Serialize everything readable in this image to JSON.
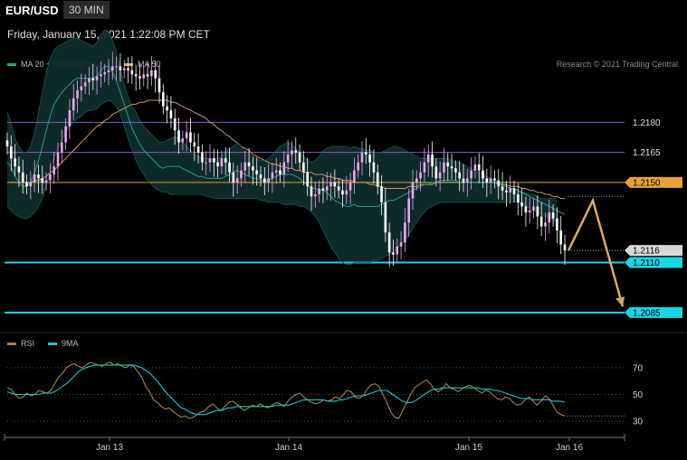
{
  "header": {
    "symbol": "EUR/USD",
    "interval": "30 MIN",
    "timestamp": "Friday, January 15, 2021 1:22:08 PM CET"
  },
  "legend_main": [
    {
      "label": "MA 20 + Bollinger Bands",
      "color": "#1f9e92"
    },
    {
      "label": "MA 50",
      "color": "#d4a86a"
    }
  ],
  "credit": "Research © 2021 Trading Central",
  "legend_rsi": [
    {
      "label": "RSI",
      "color": "#a3834e"
    },
    {
      "label": "9MA",
      "color": "#19c5cf"
    }
  ],
  "chart_data": [
    {
      "type": "candlestick",
      "x_ticks": [
        "Jan 13",
        "Jan 14",
        "Jan 15",
        "Jan 16"
      ],
      "ylim": [
        1.2075,
        1.2205
      ],
      "levels": [
        {
          "value": 1.218,
          "label": "1.2180",
          "style": "line",
          "color": "#8a5cc8"
        },
        {
          "value": 1.2165,
          "label": "1.2165",
          "style": "line",
          "color": "#8a5cc8"
        },
        {
          "value": 1.215,
          "label": "1.2150",
          "style": "line",
          "color": "#e8a33a",
          "badge": true
        },
        {
          "value": 1.2116,
          "label": "1.2116",
          "style": "current",
          "color": "#d0d0d0",
          "badge": true
        },
        {
          "value": 1.211,
          "label": "1.2110",
          "style": "thick",
          "color": "#19d6e6",
          "badge": true
        },
        {
          "value": 1.2085,
          "label": "1.2085",
          "style": "thick",
          "color": "#19d6e6",
          "badge": true
        }
      ],
      "forecast_path": [
        [
          0,
          1.2116
        ],
        [
          1,
          1.2141
        ],
        [
          2,
          1.2088
        ]
      ],
      "candle_colors": {
        "up": "#e8a8ee",
        "down": "#ffffff"
      },
      "close": [
        1.2168,
        1.2162,
        1.2158,
        1.2155,
        1.215,
        1.2148,
        1.215,
        1.2154,
        1.2152,
        1.215,
        1.2151,
        1.2154,
        1.2158,
        1.2165,
        1.217,
        1.2178,
        1.2186,
        1.2192,
        1.2196,
        1.2198,
        1.22,
        1.2202,
        1.2201,
        1.2203,
        1.2204,
        1.2205,
        1.2206,
        1.2208,
        1.2208,
        1.2206,
        1.2207,
        1.2206,
        1.2204,
        1.2203,
        1.2202,
        1.2204,
        1.2203,
        1.2206,
        1.2202,
        1.2195,
        1.2188,
        1.2186,
        1.2182,
        1.2176,
        1.217,
        1.2172,
        1.2175,
        1.217,
        1.2168,
        1.2165,
        1.216,
        1.216,
        1.2162,
        1.216,
        1.2158,
        1.2162,
        1.216,
        1.2155,
        1.215,
        1.2152,
        1.2156,
        1.216,
        1.2158,
        1.2156,
        1.2154,
        1.2152,
        1.215,
        1.2152,
        1.2155,
        1.2156,
        1.2154,
        1.216,
        1.2164,
        1.2166,
        1.2165,
        1.216,
        1.2155,
        1.2148,
        1.2143,
        1.2144,
        1.2147,
        1.2146,
        1.2148,
        1.215,
        1.2148,
        1.2146,
        1.2144,
        1.2146,
        1.215,
        1.2156,
        1.216,
        1.2165,
        1.2164,
        1.216,
        1.2155,
        1.2148,
        1.214,
        1.2125,
        1.2115,
        1.2114,
        1.2118,
        1.212,
        1.213,
        1.2142,
        1.215,
        1.2152,
        1.2155,
        1.216,
        1.2164,
        1.2158,
        1.2152,
        1.2155,
        1.216,
        1.2158,
        1.2157,
        1.2155,
        1.2152,
        1.215,
        1.2152,
        1.2156,
        1.2159,
        1.2156,
        1.2152,
        1.215,
        1.2152,
        1.2151,
        1.2148,
        1.2146,
        1.2145,
        1.2147,
        1.2144,
        1.214,
        1.2138,
        1.2135,
        1.2136,
        1.2138,
        1.2133,
        1.2128,
        1.213,
        1.2135,
        1.2132,
        1.2126,
        1.2119,
        1.2116
      ],
      "bb_upper": [
        1.2185,
        1.218,
        1.2172,
        1.2168,
        1.2165,
        1.2165,
        1.2168,
        1.2175,
        1.2185,
        1.2195,
        1.2205,
        1.2212,
        1.2216,
        1.2218,
        1.2219,
        1.222,
        1.2221,
        1.2222,
        1.2222,
        1.2221,
        1.222,
        1.2219,
        1.2218,
        1.222,
        1.2224,
        1.2226,
        1.2225,
        1.2221,
        1.2215,
        1.2207,
        1.2199,
        1.2193,
        1.2188,
        1.2185,
        1.2181,
        1.2178,
        1.2176,
        1.2174,
        1.2172,
        1.217,
        1.217,
        1.2171,
        1.2172,
        1.2173,
        1.2172,
        1.217,
        1.2168,
        1.2166,
        1.2164,
        1.2163,
        1.2162,
        1.2162,
        1.2162,
        1.2162,
        1.2162,
        1.2163,
        1.2165,
        1.2167,
        1.2168,
        1.217,
        1.2168,
        1.2166,
        1.2164,
        1.2163,
        1.2162,
        1.2161,
        1.2161,
        1.2162,
        1.2164,
        1.2166,
        1.2168,
        1.2169,
        1.217,
        1.2169,
        1.2167,
        1.2165,
        1.2163,
        1.2161,
        1.216,
        1.2161,
        1.2163,
        1.2166,
        1.2167,
        1.2168,
        1.2168,
        1.2168,
        1.2168,
        1.2168,
        1.2167,
        1.2168,
        1.2167,
        1.2167,
        1.2166,
        1.2166,
        1.2165,
        1.2165,
        1.2165,
        1.2166,
        1.2167,
        1.2168,
        1.2168,
        1.2167,
        1.2166,
        1.2165,
        1.2164,
        1.2163,
        1.2162,
        1.2162,
        1.2162,
        1.2162,
        1.2162,
        1.2162,
        1.2162,
        1.2162,
        1.2161,
        1.216,
        1.216,
        1.2159,
        1.2158,
        1.2157,
        1.2156,
        1.2155,
        1.2154,
        1.2153,
        1.2152,
        1.2151,
        1.215,
        1.2149,
        1.2148,
        1.2147,
        1.2146,
        1.2146,
        1.2145,
        1.2145,
        1.2144,
        1.2144,
        1.2143,
        1.2142,
        1.2142,
        1.2142,
        1.2142,
        1.2142
      ],
      "bb_lower": [
        1.2138,
        1.2136,
        1.2134,
        1.2133,
        1.2132,
        1.2132,
        1.2133,
        1.2135,
        1.2138,
        1.2142,
        1.2148,
        1.2155,
        1.2162,
        1.2167,
        1.2171,
        1.2175,
        1.2178,
        1.218,
        1.2182,
        1.2183,
        1.2185,
        1.2186,
        1.2186,
        1.2187,
        1.2189,
        1.219,
        1.2191,
        1.219,
        1.2188,
        1.2184,
        1.2178,
        1.2172,
        1.2166,
        1.2161,
        1.2157,
        1.2154,
        1.2151,
        1.2149,
        1.2147,
        1.2146,
        1.2145,
        1.2145,
        1.2144,
        1.2144,
        1.2144,
        1.2144,
        1.2144,
        1.2144,
        1.2144,
        1.2144,
        1.2144,
        1.2143,
        1.2143,
        1.2142,
        1.2142,
        1.2142,
        1.2142,
        1.2142,
        1.2142,
        1.2142,
        1.2142,
        1.2142,
        1.2142,
        1.2142,
        1.2142,
        1.2141,
        1.2141,
        1.214,
        1.214,
        1.214,
        1.214,
        1.2139,
        1.2139,
        1.2139,
        1.2139,
        1.2138,
        1.2138,
        1.2137,
        1.2135,
        1.2133,
        1.213,
        1.2126,
        1.2122,
        1.2118,
        1.2115,
        1.2112,
        1.211,
        1.2109,
        1.2109,
        1.211,
        1.211,
        1.211,
        1.211,
        1.211,
        1.2111,
        1.2111,
        1.2112,
        1.2113,
        1.2114,
        1.2115,
        1.2117,
        1.2119,
        1.2121,
        1.2124,
        1.2127,
        1.213,
        1.2133,
        1.2135,
        1.2137,
        1.2138,
        1.2139,
        1.214,
        1.214,
        1.214,
        1.214,
        1.214,
        1.214,
        1.214,
        1.214,
        1.214,
        1.214,
        1.214,
        1.214,
        1.214,
        1.214,
        1.214,
        1.214,
        1.214,
        1.214,
        1.214,
        1.214,
        1.214,
        1.2139,
        1.2138,
        1.2137,
        1.2136,
        1.2135,
        1.2134,
        1.2133,
        1.2132,
        1.2131,
        1.213
      ],
      "ma20": [
        1.216,
        1.2158,
        1.2153,
        1.215,
        1.2148,
        1.2148,
        1.215,
        1.2155,
        1.2161,
        1.2168,
        1.2176,
        1.2183,
        1.2189,
        1.2192,
        1.2195,
        1.2197,
        1.2199,
        1.2201,
        1.2202,
        1.2202,
        1.2202,
        1.2202,
        1.2202,
        1.2203,
        1.2206,
        1.2208,
        1.2208,
        1.2205,
        1.2201,
        1.2195,
        1.2189,
        1.2183,
        1.2177,
        1.2173,
        1.2169,
        1.2166,
        1.2164,
        1.2162,
        1.216,
        1.2158,
        1.2157,
        1.2158,
        1.2158,
        1.2158,
        1.2158,
        1.2157,
        1.2156,
        1.2155,
        1.2154,
        1.2153,
        1.2153,
        1.2152,
        1.2152,
        1.2152,
        1.2152,
        1.2152,
        1.2153,
        1.2154,
        1.2155,
        1.2156,
        1.2155,
        1.2154,
        1.2153,
        1.2152,
        1.2152,
        1.2151,
        1.2151,
        1.2151,
        1.2152,
        1.2153,
        1.2154,
        1.2154,
        1.2154,
        1.2154,
        1.2153,
        1.2152,
        1.215,
        1.2149,
        1.2147,
        1.2147,
        1.2146,
        1.2146,
        1.2145,
        1.2143,
        1.2141,
        1.214,
        1.2139,
        1.2138,
        1.2138,
        1.2139,
        1.2138,
        1.2138,
        1.2138,
        1.2138,
        1.2138,
        1.2138,
        1.2139,
        1.214,
        1.2141,
        1.2141,
        1.2142,
        1.2143,
        1.2144,
        1.2145,
        1.2146,
        1.2147,
        1.2148,
        1.2149,
        1.2149,
        1.215,
        1.215,
        1.2151,
        1.2151,
        1.2151,
        1.2151,
        1.2151,
        1.215,
        1.215,
        1.215,
        1.215,
        1.215,
        1.215,
        1.215,
        1.215,
        1.215,
        1.215,
        1.2149,
        1.2149,
        1.2148,
        1.2147,
        1.2147,
        1.2146,
        1.2145,
        1.2144,
        1.2143,
        1.2142,
        1.2141,
        1.214,
        1.2139,
        1.2138,
        1.2137,
        1.2136,
        1.2135,
        1.2134
      ],
      "ma50": [
        1.215,
        1.215,
        1.215,
        1.215,
        1.215,
        1.215,
        1.215,
        1.2151,
        1.2151,
        1.2152,
        1.2153,
        1.2155,
        1.2156,
        1.2158,
        1.216,
        1.2162,
        1.2164,
        1.2166,
        1.2168,
        1.217,
        1.2172,
        1.2174,
        1.2176,
        1.2178,
        1.2179,
        1.2181,
        1.2182,
        1.2184,
        1.2185,
        1.2186,
        1.2187,
        1.2188,
        1.2189,
        1.2189,
        1.219,
        1.219,
        1.2191,
        1.2191,
        1.2191,
        1.2191,
        1.2191,
        1.2191,
        1.219,
        1.219,
        1.2189,
        1.2188,
        1.2187,
        1.2186,
        1.2185,
        1.2184,
        1.2183,
        1.2182,
        1.218,
        1.2179,
        1.2177,
        1.2176,
        1.2174,
        1.2173,
        1.2171,
        1.217,
        1.2168,
        1.2167,
        1.2166,
        1.2164,
        1.2163,
        1.2162,
        1.2161,
        1.216,
        1.2159,
        1.2159,
        1.2158,
        1.2158,
        1.2157,
        1.2157,
        1.2156,
        1.2156,
        1.2155,
        1.2155,
        1.2155,
        1.2154,
        1.2154,
        1.2154,
        1.2153,
        1.2153,
        1.2152,
        1.2152,
        1.2151,
        1.2151,
        1.2151,
        1.215,
        1.215,
        1.215,
        1.215,
        1.2149,
        1.2149,
        1.2148,
        1.2148,
        1.2147,
        1.2147,
        1.2147,
        1.2147,
        1.2147,
        1.2147,
        1.2148,
        1.2148,
        1.2148,
        1.2149,
        1.2149,
        1.2149,
        1.2149,
        1.215,
        1.215,
        1.215,
        1.215,
        1.215,
        1.215,
        1.215,
        1.215,
        1.215,
        1.215,
        1.215,
        1.215,
        1.215,
        1.215,
        1.215,
        1.215,
        1.2149,
        1.2149,
        1.2149,
        1.2148,
        1.2148,
        1.2148,
        1.2147,
        1.2147,
        1.2146,
        1.2146,
        1.2145,
        1.2145,
        1.2144,
        1.2144,
        1.2143,
        1.2143,
        1.2142,
        1.2142
      ]
    },
    {
      "type": "line",
      "ylim": [
        22,
        80
      ],
      "y_ticks": [
        "70",
        "50",
        "30"
      ],
      "levels": [
        70,
        50,
        30
      ],
      "series": [
        {
          "name": "RSI",
          "color": "#a3834e",
          "values": [
            55,
            54,
            50,
            47,
            48,
            51,
            49,
            50,
            53,
            52,
            51,
            53,
            58,
            63,
            66,
            70,
            72,
            73,
            71,
            70,
            72,
            74,
            73,
            72,
            71,
            73,
            74,
            72,
            73,
            71,
            70,
            72,
            71,
            67,
            63,
            56,
            52,
            46,
            44,
            41,
            39,
            40,
            37,
            35,
            33,
            34,
            32,
            33,
            35,
            37,
            38,
            41,
            43,
            40,
            38,
            41,
            44,
            45,
            43,
            40,
            38,
            40,
            42,
            41,
            43,
            41,
            40,
            42,
            44,
            43,
            41,
            45,
            48,
            50,
            51,
            48,
            46,
            44,
            43,
            44,
            46,
            45,
            46,
            48,
            47,
            50,
            53,
            52,
            48,
            47,
            49,
            54,
            57,
            58,
            56,
            50,
            44,
            37,
            33,
            32,
            38,
            44,
            50,
            55,
            57,
            59,
            61,
            58,
            54,
            52,
            54,
            58,
            55,
            54,
            52,
            54,
            56,
            57,
            55,
            53,
            51,
            53,
            52,
            49,
            47,
            46,
            48,
            47,
            44,
            42,
            43,
            46,
            48,
            45,
            42,
            45,
            49,
            47,
            42,
            37,
            35,
            34
          ]
        },
        {
          "name": "9MA",
          "color": "#19c5cf",
          "values": [
            52,
            51,
            50,
            50,
            50,
            50,
            50,
            50,
            50,
            51,
            51,
            51,
            52,
            54,
            56,
            58,
            61,
            64,
            67,
            69,
            70,
            71,
            72,
            72,
            72,
            72,
            72,
            72,
            72,
            72,
            72,
            72,
            72,
            71,
            70,
            68,
            66,
            63,
            60,
            56,
            52,
            49,
            46,
            43,
            40,
            39,
            37,
            36,
            35,
            35,
            35,
            36,
            37,
            38,
            38,
            39,
            40,
            40,
            41,
            41,
            41,
            41,
            41,
            41,
            41,
            41,
            41,
            41,
            42,
            42,
            42,
            42,
            43,
            44,
            45,
            46,
            46,
            46,
            46,
            46,
            46,
            45,
            45,
            45,
            46,
            46,
            47,
            48,
            49,
            49,
            49,
            50,
            51,
            52,
            53,
            53,
            53,
            51,
            49,
            47,
            45,
            44,
            44,
            45,
            47,
            49,
            51,
            53,
            54,
            54,
            55,
            55,
            55,
            55,
            55,
            55,
            55,
            55,
            55,
            55,
            54,
            54,
            54,
            53,
            53,
            52,
            51,
            50,
            49,
            48,
            47,
            47,
            47,
            46,
            46,
            46,
            46,
            46,
            45,
            45,
            45,
            44
          ]
        }
      ]
    }
  ]
}
